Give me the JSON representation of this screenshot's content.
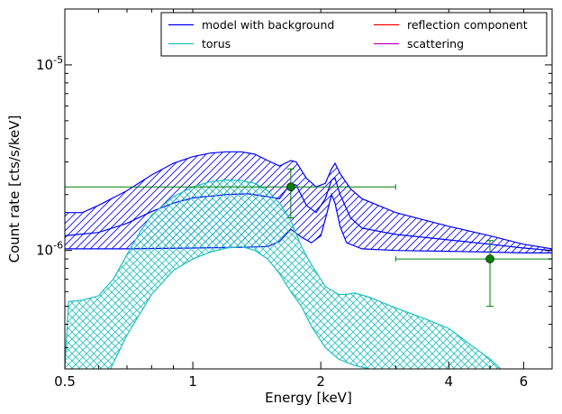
{
  "chart_data": {
    "type": "line",
    "xlabel": "Energy [keV]",
    "ylabel": "Count rate [cts/s/keV]",
    "x_scale": "log",
    "y_scale": "log",
    "xlim": [
      0.5,
      7.0
    ],
    "ylim": [
      2.3e-07,
      2e-05
    ],
    "x_ticks": [
      0.5,
      1,
      2,
      4,
      6
    ],
    "x_tick_labels": [
      "0.5",
      "1",
      "2",
      "4",
      "6"
    ],
    "y_ticks": [
      1e-06,
      1e-05
    ],
    "y_tick_labels": [
      {
        "base": "10",
        "exp": "-6"
      },
      {
        "base": "10",
        "exp": "-5"
      }
    ],
    "legend": {
      "placement": "top-right",
      "columns": 2,
      "entries": [
        {
          "label": "model with background",
          "color": "#0000ff"
        },
        {
          "label": "reflection component",
          "color": "#ff0000"
        },
        {
          "label": "torus",
          "color": "#1fbfbf"
        },
        {
          "label": "scattering",
          "color": "#bf00bf"
        }
      ]
    },
    "series": [
      {
        "name": "model with background",
        "color": "#0000ff",
        "upper": [
          [
            0.5,
            1.6e-06
          ],
          [
            0.55,
            1.6e-06
          ],
          [
            0.6,
            1.75e-06
          ],
          [
            0.7,
            2.1e-06
          ],
          [
            0.8,
            2.55e-06
          ],
          [
            0.9,
            2.95e-06
          ],
          [
            1.0,
            3.2e-06
          ],
          [
            1.1,
            3.35e-06
          ],
          [
            1.2,
            3.4e-06
          ],
          [
            1.3,
            3.4e-06
          ],
          [
            1.4,
            3.3e-06
          ],
          [
            1.5,
            3.05e-06
          ],
          [
            1.6,
            2.85e-06
          ],
          [
            1.7,
            3.05e-06
          ],
          [
            1.75,
            3e-06
          ],
          [
            1.85,
            2.45e-06
          ],
          [
            1.95,
            2.2e-06
          ],
          [
            2.05,
            2.3e-06
          ],
          [
            2.12,
            2.75e-06
          ],
          [
            2.16,
            2.95e-06
          ],
          [
            2.22,
            2.6e-06
          ],
          [
            2.35,
            2.15e-06
          ],
          [
            2.5,
            1.9e-06
          ],
          [
            3.0,
            1.6e-06
          ],
          [
            4.0,
            1.35e-06
          ],
          [
            5.0,
            1.2e-06
          ],
          [
            6.0,
            1.08e-06
          ],
          [
            7.0,
            1.02e-06
          ]
        ],
        "lower": [
          [
            0.5,
            1.02e-06
          ],
          [
            0.7,
            1.02e-06
          ],
          [
            1.0,
            1.03e-06
          ],
          [
            1.3,
            1.04e-06
          ],
          [
            1.5,
            1.05e-06
          ],
          [
            1.6,
            1.12e-06
          ],
          [
            1.7,
            1.3e-06
          ],
          [
            1.8,
            1.18e-06
          ],
          [
            1.9,
            1.1e-06
          ],
          [
            2.0,
            1.2e-06
          ],
          [
            2.07,
            1.6e-06
          ],
          [
            2.12,
            2e-06
          ],
          [
            2.16,
            1.8e-06
          ],
          [
            2.22,
            1.35e-06
          ],
          [
            2.3,
            1.1e-06
          ],
          [
            2.5,
            1.02e-06
          ],
          [
            3.0,
            1e-06
          ],
          [
            4.0,
            9.9e-07
          ],
          [
            5.0,
            9.8e-07
          ],
          [
            6.0,
            9.7e-07
          ],
          [
            7.0,
            9.7e-07
          ]
        ],
        "middle": [
          [
            0.5,
            1.2e-06
          ],
          [
            0.6,
            1.25e-06
          ],
          [
            0.7,
            1.4e-06
          ],
          [
            0.8,
            1.62e-06
          ],
          [
            0.9,
            1.8e-06
          ],
          [
            1.0,
            1.92e-06
          ],
          [
            1.2,
            2e-06
          ],
          [
            1.35,
            2.02e-06
          ],
          [
            1.5,
            1.95e-06
          ],
          [
            1.6,
            1.9e-06
          ],
          [
            1.7,
            2.3e-06
          ],
          [
            1.75,
            2.25e-06
          ],
          [
            1.85,
            1.75e-06
          ],
          [
            1.95,
            1.6e-06
          ],
          [
            2.05,
            1.9e-06
          ],
          [
            2.12,
            2.4e-06
          ],
          [
            2.16,
            2.45e-06
          ],
          [
            2.22,
            2e-06
          ],
          [
            2.35,
            1.5e-06
          ],
          [
            2.5,
            1.32e-06
          ],
          [
            3.0,
            1.22e-06
          ],
          [
            4.0,
            1.14e-06
          ],
          [
            5.0,
            1.08e-06
          ],
          [
            6.0,
            1.03e-06
          ],
          [
            7.0,
            1e-06
          ]
        ]
      },
      {
        "name": "torus",
        "color": "#1fbfbf",
        "upper": [
          [
            0.5,
            2.3e-07
          ],
          [
            0.51,
            5.3e-07
          ],
          [
            0.55,
            5.4e-07
          ],
          [
            0.6,
            5.7e-07
          ],
          [
            0.65,
            7e-07
          ],
          [
            0.7,
            9.5e-07
          ],
          [
            0.75,
            1.25e-06
          ],
          [
            0.8,
            1.55e-06
          ],
          [
            0.9,
            1.95e-06
          ],
          [
            1.0,
            2.2e-06
          ],
          [
            1.1,
            2.35e-06
          ],
          [
            1.2,
            2.4e-06
          ],
          [
            1.3,
            2.38e-06
          ],
          [
            1.4,
            2.3e-06
          ],
          [
            1.5,
            2.1e-06
          ],
          [
            1.6,
            1.8e-06
          ],
          [
            1.7,
            1.45e-06
          ],
          [
            1.8,
            1.05e-06
          ],
          [
            1.9,
            8.4e-07
          ],
          [
            2.05,
            6.4e-07
          ],
          [
            2.2,
            5.8e-07
          ],
          [
            2.3,
            5.8e-07
          ],
          [
            2.4,
            5.9e-07
          ],
          [
            2.6,
            5.6e-07
          ],
          [
            3.0,
            4.9e-07
          ],
          [
            3.5,
            4.3e-07
          ],
          [
            4.0,
            3.8e-07
          ],
          [
            4.5,
            3.1e-07
          ],
          [
            5.0,
            2.6e-07
          ],
          [
            5.3,
            2.3e-07
          ]
        ],
        "lower": [
          [
            0.64,
            2.3e-07
          ],
          [
            0.7,
            3.5e-07
          ],
          [
            0.8,
            5.8e-07
          ],
          [
            0.9,
            7.8e-07
          ],
          [
            1.0,
            9e-07
          ],
          [
            1.1,
            9.8e-07
          ],
          [
            1.2,
            1.03e-06
          ],
          [
            1.3,
            1.05e-06
          ],
          [
            1.4,
            1e-06
          ],
          [
            1.5,
            9e-07
          ],
          [
            1.6,
            7.5e-07
          ],
          [
            1.7,
            6e-07
          ],
          [
            1.8,
            5e-07
          ],
          [
            1.9,
            3.9e-07
          ],
          [
            2.05,
            3e-07
          ],
          [
            2.2,
            2.6e-07
          ],
          [
            2.4,
            2.4e-07
          ],
          [
            2.6,
            2.3e-07
          ]
        ]
      }
    ],
    "data_points": [
      {
        "x": 1.7,
        "y": 2.2e-06,
        "xerr": [
          0.5,
          3.0
        ],
        "yerr": [
          1.5e-06,
          2.75e-06
        ],
        "color": "#007f00"
      },
      {
        "x": 5.0,
        "y": 9e-07,
        "xerr": [
          3.0,
          7.0
        ],
        "yerr": [
          5e-07,
          1.13e-06
        ],
        "color": "#007f00"
      }
    ]
  }
}
